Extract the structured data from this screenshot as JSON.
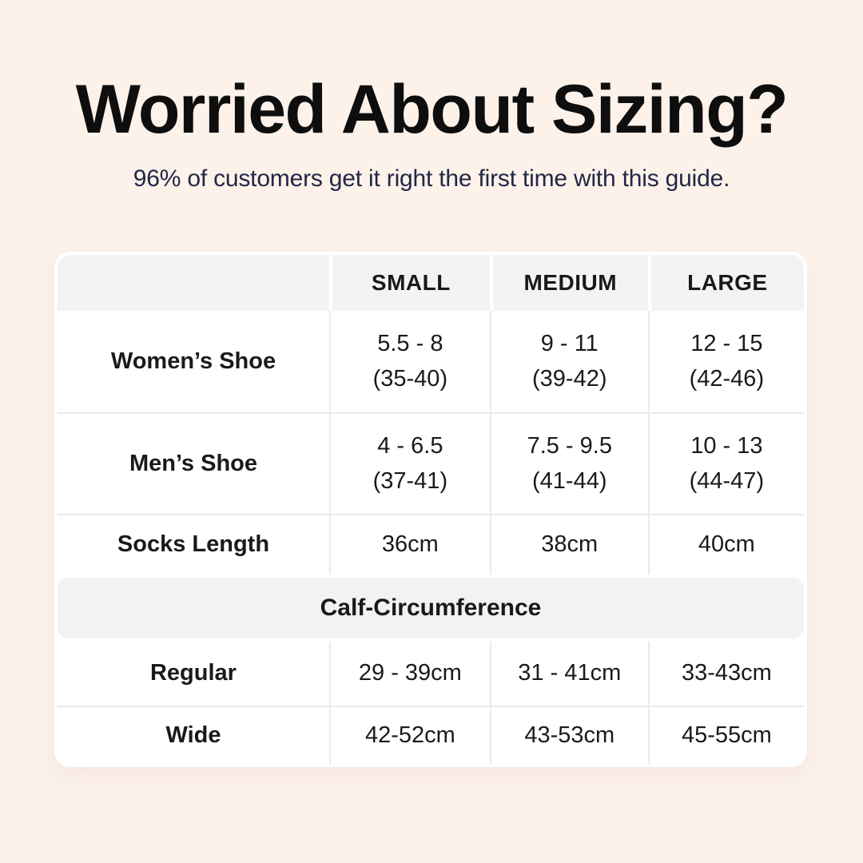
{
  "page": {
    "background_color": "#fcf2ea",
    "table_background_color": "#ffffff",
    "header_band_color": "#f4f3f1",
    "title_color": "#0e0e0e",
    "subtitle_color": "#232747"
  },
  "header": {
    "title": "Worried About Sizing?",
    "subtitle": "96% of customers get it right the first time with this guide."
  },
  "table": {
    "columns": [
      "",
      "SMALL",
      "MEDIUM",
      "LARGE"
    ],
    "rows": [
      {
        "label": "Women’s Shoe",
        "values": [
          [
            "5.5 - 8",
            "(35-40)"
          ],
          [
            "9 - 11",
            "(39-42)"
          ],
          [
            "12 - 15",
            "(42-46)"
          ]
        ]
      },
      {
        "label": "Men’s Shoe",
        "values": [
          [
            "4 - 6.5",
            "(37-41)"
          ],
          [
            "7.5 - 9.5",
            "(41-44)"
          ],
          [
            "10 - 13",
            "(44-47)"
          ]
        ]
      },
      {
        "label": "Socks Length",
        "values": [
          [
            "36cm"
          ],
          [
            "38cm"
          ],
          [
            "40cm"
          ]
        ]
      }
    ],
    "section_header": "Calf-Circumference",
    "calf_rows": [
      {
        "label": "Regular",
        "values": [
          [
            "29 - 39cm"
          ],
          [
            "31 - 41cm"
          ],
          [
            "33-43cm"
          ]
        ]
      },
      {
        "label": "Wide",
        "values": [
          [
            "42-52cm"
          ],
          [
            "43-53cm"
          ],
          [
            "45-55cm"
          ]
        ]
      }
    ]
  },
  "chart_data": {
    "type": "table",
    "title": "Worried About Sizing?",
    "columns": [
      "",
      "SMALL",
      "MEDIUM",
      "LARGE"
    ],
    "rows": [
      [
        "Women’s Shoe",
        "5.5 - 8 (35-40)",
        "9 - 11 (39-42)",
        "12 - 15 (42-46)"
      ],
      [
        "Men’s Shoe",
        "4 - 6.5 (37-41)",
        "7.5 - 9.5 (41-44)",
        "10 - 13 (44-47)"
      ],
      [
        "Socks Length",
        "36cm",
        "38cm",
        "40cm"
      ],
      [
        "Calf-Circumference",
        "",
        "",
        ""
      ],
      [
        "Regular",
        "29 - 39cm",
        "31 - 41cm",
        "33-43cm"
      ],
      [
        "Wide",
        "42-52cm",
        "43-53cm",
        "45-55cm"
      ]
    ]
  }
}
